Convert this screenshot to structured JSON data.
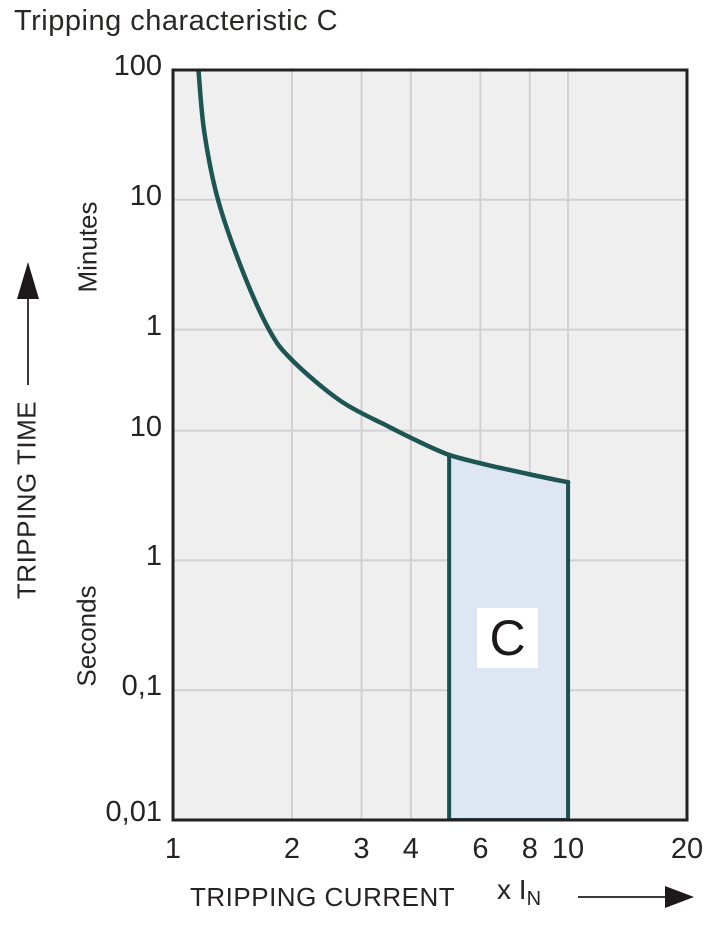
{
  "title": "Tripping characteristic C",
  "y_axis": {
    "title": "TRIPPING TIME",
    "unit_upper": "Minutes",
    "unit_lower": "Seconds",
    "ticks": [
      {
        "label": "100",
        "seconds": 6000
      },
      {
        "label": "10",
        "seconds": 600
      },
      {
        "label": "1",
        "seconds": 60
      },
      {
        "label": "10",
        "seconds": 10
      },
      {
        "label": "1",
        "seconds": 1
      },
      {
        "label": "0,1",
        "seconds": 0.1
      },
      {
        "label": "0,01",
        "seconds": 0.01
      }
    ]
  },
  "x_axis": {
    "title": "TRIPPING CURRENT",
    "multiplier": "x I",
    "multiplier_sub": "N",
    "ticks": [
      "1",
      "2",
      "3",
      "4",
      "6",
      "8",
      "10",
      "20"
    ],
    "tick_values": [
      1,
      2,
      3,
      4,
      6,
      8,
      10,
      20
    ]
  },
  "region_label": "C",
  "chart_data": {
    "type": "line",
    "title": "Tripping characteristic C",
    "xlabel": "TRIPPING CURRENT x IN",
    "ylabel": "TRIPPING TIME",
    "x_scale": "log",
    "y_scale": "log",
    "xlim": [
      1,
      20
    ],
    "ylim_seconds": [
      0.01,
      6000
    ],
    "grid": true,
    "grid_x_values": [
      2,
      3,
      4,
      6,
      8,
      10
    ],
    "grid_y_values_seconds": [
      600,
      60,
      10,
      1,
      0.1
    ],
    "series": [
      {
        "name": "tripping-time-limit-curve",
        "x_in": [
          1.16,
          1.2,
          1.3,
          1.5,
          1.75,
          2.0,
          2.65,
          3.5,
          4.2,
          5.0,
          6.0,
          8.0,
          10.0
        ],
        "seconds": [
          6000,
          2000,
          600,
          170,
          60,
          35,
          17,
          10.8,
          8.2,
          6.5,
          5.6,
          4.6,
          4.0
        ]
      }
    ],
    "region": {
      "label": "C",
      "x_range": [
        5,
        10
      ],
      "bottom_seconds": 0.01,
      "top_x_in": [
        5.0,
        6.0,
        8.0,
        10.0
      ],
      "top_seconds": [
        6.5,
        5.6,
        4.6,
        4.0
      ]
    },
    "colors": {
      "curve": "#1d5553",
      "region_fill": "#dfe6f3",
      "region_stroke": "#1d5051",
      "plot_bg": "#f0efef",
      "grid": "#d2d0d3",
      "frame": "#232021",
      "text": "#272325",
      "arrow": "#3a3a3a"
    }
  }
}
